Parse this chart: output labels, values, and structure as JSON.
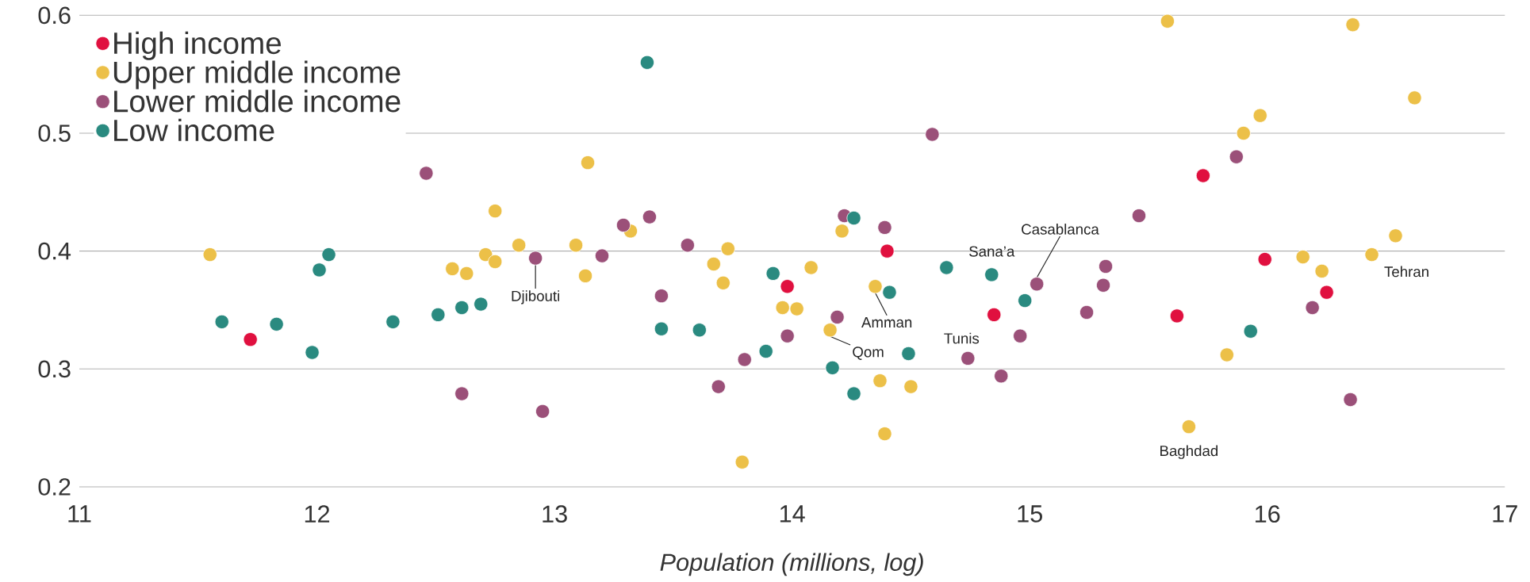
{
  "chart_data": {
    "type": "scatter",
    "xlabel": "Population (millions, log)",
    "xlim": [
      11,
      17
    ],
    "xticks": [
      11,
      12,
      13,
      14,
      15,
      16,
      17
    ],
    "ylim": [
      0.2,
      0.6
    ],
    "yticks": [
      0.2,
      0.3,
      0.4,
      0.5,
      0.6
    ],
    "grid": "y",
    "legend": "top left",
    "marker": "circle",
    "series": [
      {
        "name": "High income",
        "color": "#e0103f",
        "x": [
          11.72,
          13.98,
          14.4,
          14.85,
          15.62,
          15.73,
          15.99,
          16.25
        ],
        "values": [
          0.325,
          0.37,
          0.4,
          0.346,
          0.345,
          0.464,
          0.393,
          0.365
        ]
      },
      {
        "name": "Upper middle income",
        "color": "#ecc048",
        "x": [
          11.55,
          12.57,
          12.63,
          12.71,
          12.75,
          12.75,
          12.85,
          13.09,
          13.13,
          13.14,
          13.32,
          13.67,
          13.71,
          13.73,
          13.79,
          13.96,
          14.02,
          14.08,
          14.16,
          14.21,
          14.35,
          14.37,
          14.39,
          14.5,
          15.58,
          15.67,
          15.83,
          15.9,
          15.97,
          16.15,
          16.23,
          16.36,
          16.44,
          16.54,
          16.62
        ],
        "values": [
          0.397,
          0.385,
          0.381,
          0.397,
          0.391,
          0.434,
          0.405,
          0.405,
          0.379,
          0.475,
          0.417,
          0.389,
          0.373,
          0.402,
          0.221,
          0.352,
          0.351,
          0.386,
          0.333,
          0.417,
          0.37,
          0.29,
          0.245,
          0.285,
          0.595,
          0.251,
          0.312,
          0.5,
          0.515,
          0.395,
          0.383,
          0.592,
          0.397,
          0.413,
          0.53
        ]
      },
      {
        "name": "Lower middle income",
        "color": "#9b5079",
        "x": [
          12.46,
          12.61,
          12.92,
          12.95,
          13.2,
          13.29,
          13.4,
          13.45,
          13.56,
          13.69,
          13.8,
          13.98,
          14.19,
          14.22,
          14.39,
          14.59,
          14.74,
          14.88,
          14.96,
          15.03,
          15.24,
          15.31,
          15.32,
          15.46,
          15.87,
          16.19,
          16.35
        ],
        "values": [
          0.466,
          0.279,
          0.394,
          0.264,
          0.396,
          0.422,
          0.429,
          0.362,
          0.405,
          0.285,
          0.308,
          0.328,
          0.344,
          0.43,
          0.42,
          0.499,
          0.309,
          0.294,
          0.328,
          0.372,
          0.348,
          0.371,
          0.387,
          0.43,
          0.48,
          0.352,
          0.274
        ]
      },
      {
        "name": "Low income",
        "color": "#2a8a80",
        "x": [
          11.6,
          11.83,
          11.98,
          12.01,
          12.05,
          12.32,
          12.51,
          12.61,
          12.69,
          13.39,
          13.45,
          13.61,
          13.89,
          13.92,
          14.17,
          14.26,
          14.26,
          14.41,
          14.49,
          14.65,
          14.84,
          14.98,
          15.93
        ],
        "values": [
          0.34,
          0.338,
          0.314,
          0.384,
          0.397,
          0.34,
          0.346,
          0.352,
          0.355,
          0.56,
          0.334,
          0.333,
          0.315,
          0.381,
          0.301,
          0.428,
          0.279,
          0.365,
          0.313,
          0.386,
          0.38,
          0.358,
          0.332
        ]
      }
    ],
    "annotations": [
      {
        "text": "Djibouti",
        "x": 12.92,
        "y": 0.394
      },
      {
        "text": "Amman",
        "x": 14.35,
        "y": 0.37
      },
      {
        "text": "Qom",
        "x": 14.16,
        "y": 0.333
      },
      {
        "text": "Tunis",
        "x": 14.74,
        "y": 0.309
      },
      {
        "text": "Sana’a",
        "x": 14.84,
        "y": 0.38
      },
      {
        "text": "Casablanca",
        "x": 15.03,
        "y": 0.372
      },
      {
        "text": "Tehran",
        "x": 16.44,
        "y": 0.397
      },
      {
        "text": "Baghdad",
        "x": 15.67,
        "y": 0.251
      }
    ]
  }
}
